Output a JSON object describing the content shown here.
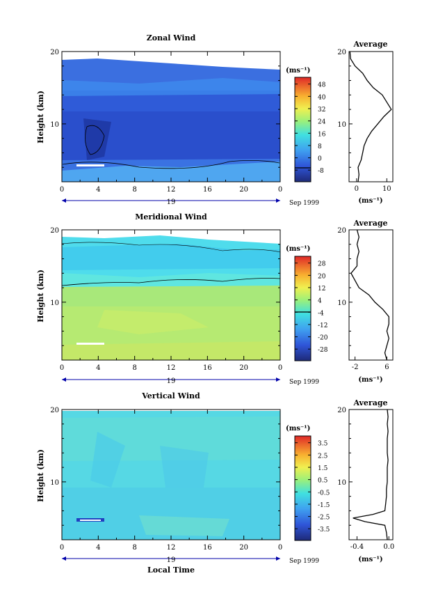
{
  "figure": {
    "xaxis_label": "Local Time",
    "date_label": "Sep 1999",
    "day_label": "19",
    "height_label": "Height (km)"
  },
  "chart_data": [
    {
      "type": "heatmap",
      "title": "Zonal Wind",
      "ylabel": "Height (km)",
      "xlabel": "",
      "x_ticks": [
        "0",
        "4",
        "8",
        "12",
        "16",
        "20",
        "0"
      ],
      "y_ticks": [
        "10",
        "20"
      ],
      "ylim": [
        2,
        20
      ],
      "xlim": [
        0,
        24
      ],
      "colorbar": {
        "unit": "(ms⁻¹)",
        "ticks": [
          "48",
          "40",
          "32",
          "24",
          "16",
          "8",
          "0",
          "-8"
        ],
        "range": [
          -8,
          52
        ],
        "contour": 0
      },
      "profile": {
        "title": "Average",
        "xlabel": "(ms⁻¹)",
        "x_ticks": [
          "0",
          "10"
        ],
        "xlim": [
          -2.5,
          12
        ],
        "height": [
          2,
          3,
          4,
          5,
          6,
          7,
          8,
          9,
          10,
          11,
          12,
          13,
          14,
          15,
          16,
          17,
          18,
          19,
          20
        ],
        "values": [
          0.5,
          0.8,
          0.5,
          1.5,
          2.0,
          2.5,
          3.5,
          5.0,
          7.0,
          9.0,
          11.5,
          10.0,
          8.5,
          5.5,
          3.5,
          2.0,
          -0.5,
          -2.0,
          -2.2
        ]
      }
    },
    {
      "type": "heatmap",
      "title": "Meridional Wind",
      "ylabel": "Height (km)",
      "xlabel": "",
      "x_ticks": [
        "0",
        "4",
        "8",
        "12",
        "16",
        "20",
        "0"
      ],
      "y_ticks": [
        "10",
        "20"
      ],
      "ylim": [
        2,
        20
      ],
      "xlim": [
        0,
        24
      ],
      "colorbar": {
        "unit": "(ms⁻¹)",
        "ticks": [
          "28",
          "20",
          "12",
          "4",
          "-4",
          "-12",
          "-20",
          "-28"
        ],
        "range": [
          -28,
          32
        ],
        "contour": 0
      },
      "profile": {
        "title": "Average",
        "xlabel": "(ms⁻¹)",
        "x_ticks": [
          "-2",
          "6"
        ],
        "xlim": [
          -3.5,
          7.5
        ],
        "height": [
          2,
          3,
          4,
          5,
          6,
          7,
          8,
          9,
          10,
          11,
          12,
          13,
          14,
          15,
          16,
          17,
          18,
          19,
          20
        ],
        "values": [
          6.0,
          5.5,
          6.0,
          6.5,
          6.0,
          6.5,
          6.5,
          5.0,
          3.0,
          1.5,
          -1.0,
          -2.0,
          -3.0,
          -1.5,
          -1.5,
          -1.0,
          -1.5,
          -1.0,
          -1.5
        ]
      }
    },
    {
      "type": "heatmap",
      "title": "Vertical Wind",
      "ylabel": "Height (km)",
      "xlabel": "Local Time",
      "x_ticks": [
        "0",
        "4",
        "8",
        "12",
        "16",
        "20",
        "0"
      ],
      "y_ticks": [
        "10",
        "20"
      ],
      "ylim": [
        2,
        20
      ],
      "xlim": [
        0,
        24
      ],
      "colorbar": {
        "unit": "(ms⁻¹)",
        "ticks": [
          "3.5",
          "2.5",
          "1.5",
          "0.5",
          "-0.5",
          "-1.5",
          "-2.5",
          "-3.5"
        ],
        "range": [
          -4,
          4
        ],
        "contour": null
      },
      "profile": {
        "title": "Average",
        "xlabel": "(ms⁻¹)",
        "x_ticks": [
          "-0.4",
          "0.0"
        ],
        "xlim": [
          -0.5,
          0.05
        ],
        "height": [
          2,
          3,
          4,
          4.5,
          5,
          5.5,
          6,
          7,
          8,
          9,
          10,
          11,
          12,
          13,
          14,
          15,
          16,
          17,
          18,
          19,
          20
        ],
        "values": [
          -0.02,
          -0.03,
          -0.05,
          -0.3,
          -0.45,
          -0.2,
          -0.05,
          -0.04,
          -0.03,
          -0.03,
          -0.02,
          -0.02,
          -0.02,
          -0.01,
          -0.02,
          -0.02,
          -0.02,
          -0.01,
          -0.02,
          -0.01,
          -0.02
        ]
      }
    }
  ]
}
